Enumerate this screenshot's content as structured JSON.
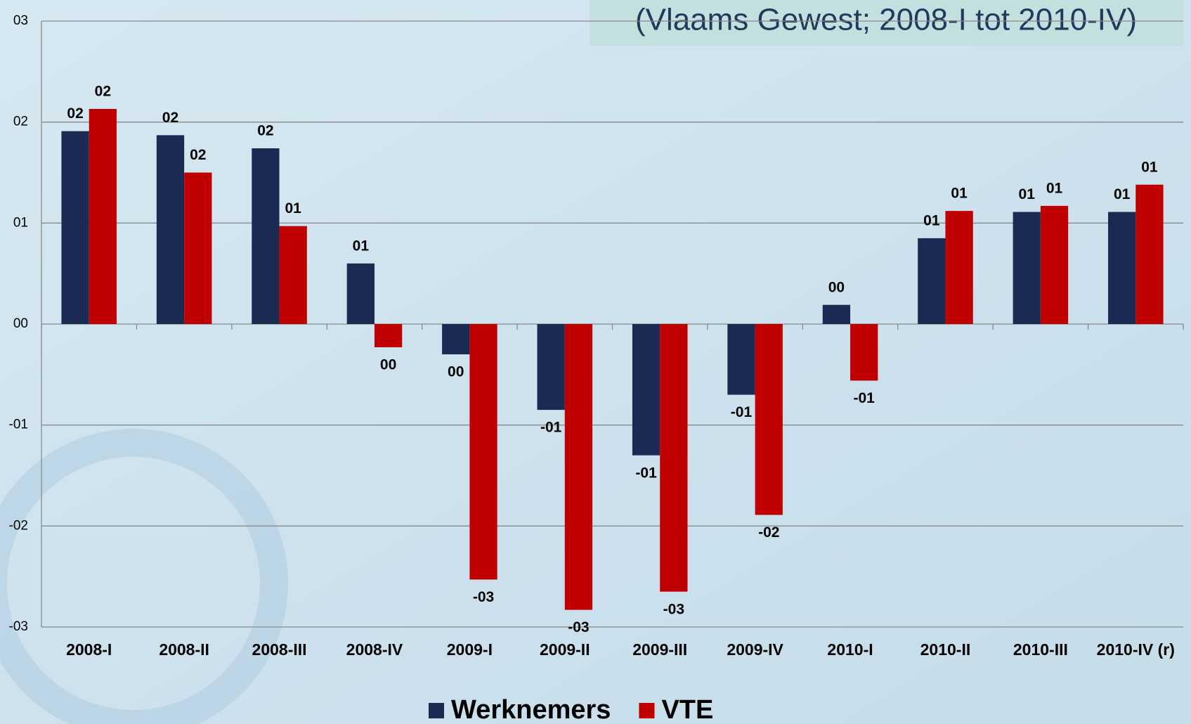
{
  "chart_data": {
    "type": "bar",
    "title": "(Vlaams Gewest; 2008-I tot 2010-IV)",
    "categories": [
      "2008-I",
      "2008-II",
      "2008-III",
      "2008-IV",
      "2009-I",
      "2009-II",
      "2009-III",
      "2009-IV",
      "2010-I",
      "2010-II",
      "2010-III",
      "2010-IV (r)"
    ],
    "series": [
      {
        "name": "Werknemers",
        "color": "#1b2a52",
        "values": [
          1.91,
          1.87,
          1.74,
          0.6,
          -0.3,
          -0.85,
          -1.3,
          -0.7,
          0.19,
          0.85,
          1.11,
          1.11
        ],
        "value_labels": [
          "02",
          "02",
          "02",
          "01",
          "00",
          "-01",
          "-01",
          "-01",
          "00",
          "01",
          "01",
          "01"
        ]
      },
      {
        "name": "VTE",
        "color": "#c00000",
        "values": [
          2.13,
          1.5,
          0.97,
          -0.23,
          -2.53,
          -2.83,
          -2.65,
          -1.89,
          -0.56,
          1.12,
          1.17,
          1.38
        ],
        "value_labels": [
          "02",
          "02",
          "01",
          "00",
          "-03",
          "-03",
          "-03",
          "-02",
          "-01",
          "01",
          "01",
          "01"
        ]
      }
    ],
    "ylim": [
      -3,
      3
    ],
    "yticks": [
      {
        "value": -3,
        "label": "-03"
      },
      {
        "value": -2,
        "label": "-02"
      },
      {
        "value": -1,
        "label": "-01"
      },
      {
        "value": 0,
        "label": "00"
      },
      {
        "value": 1,
        "label": "01"
      },
      {
        "value": 2,
        "label": "02"
      },
      {
        "value": 3,
        "label": "03"
      }
    ],
    "grid": true,
    "legend": "bottom"
  }
}
